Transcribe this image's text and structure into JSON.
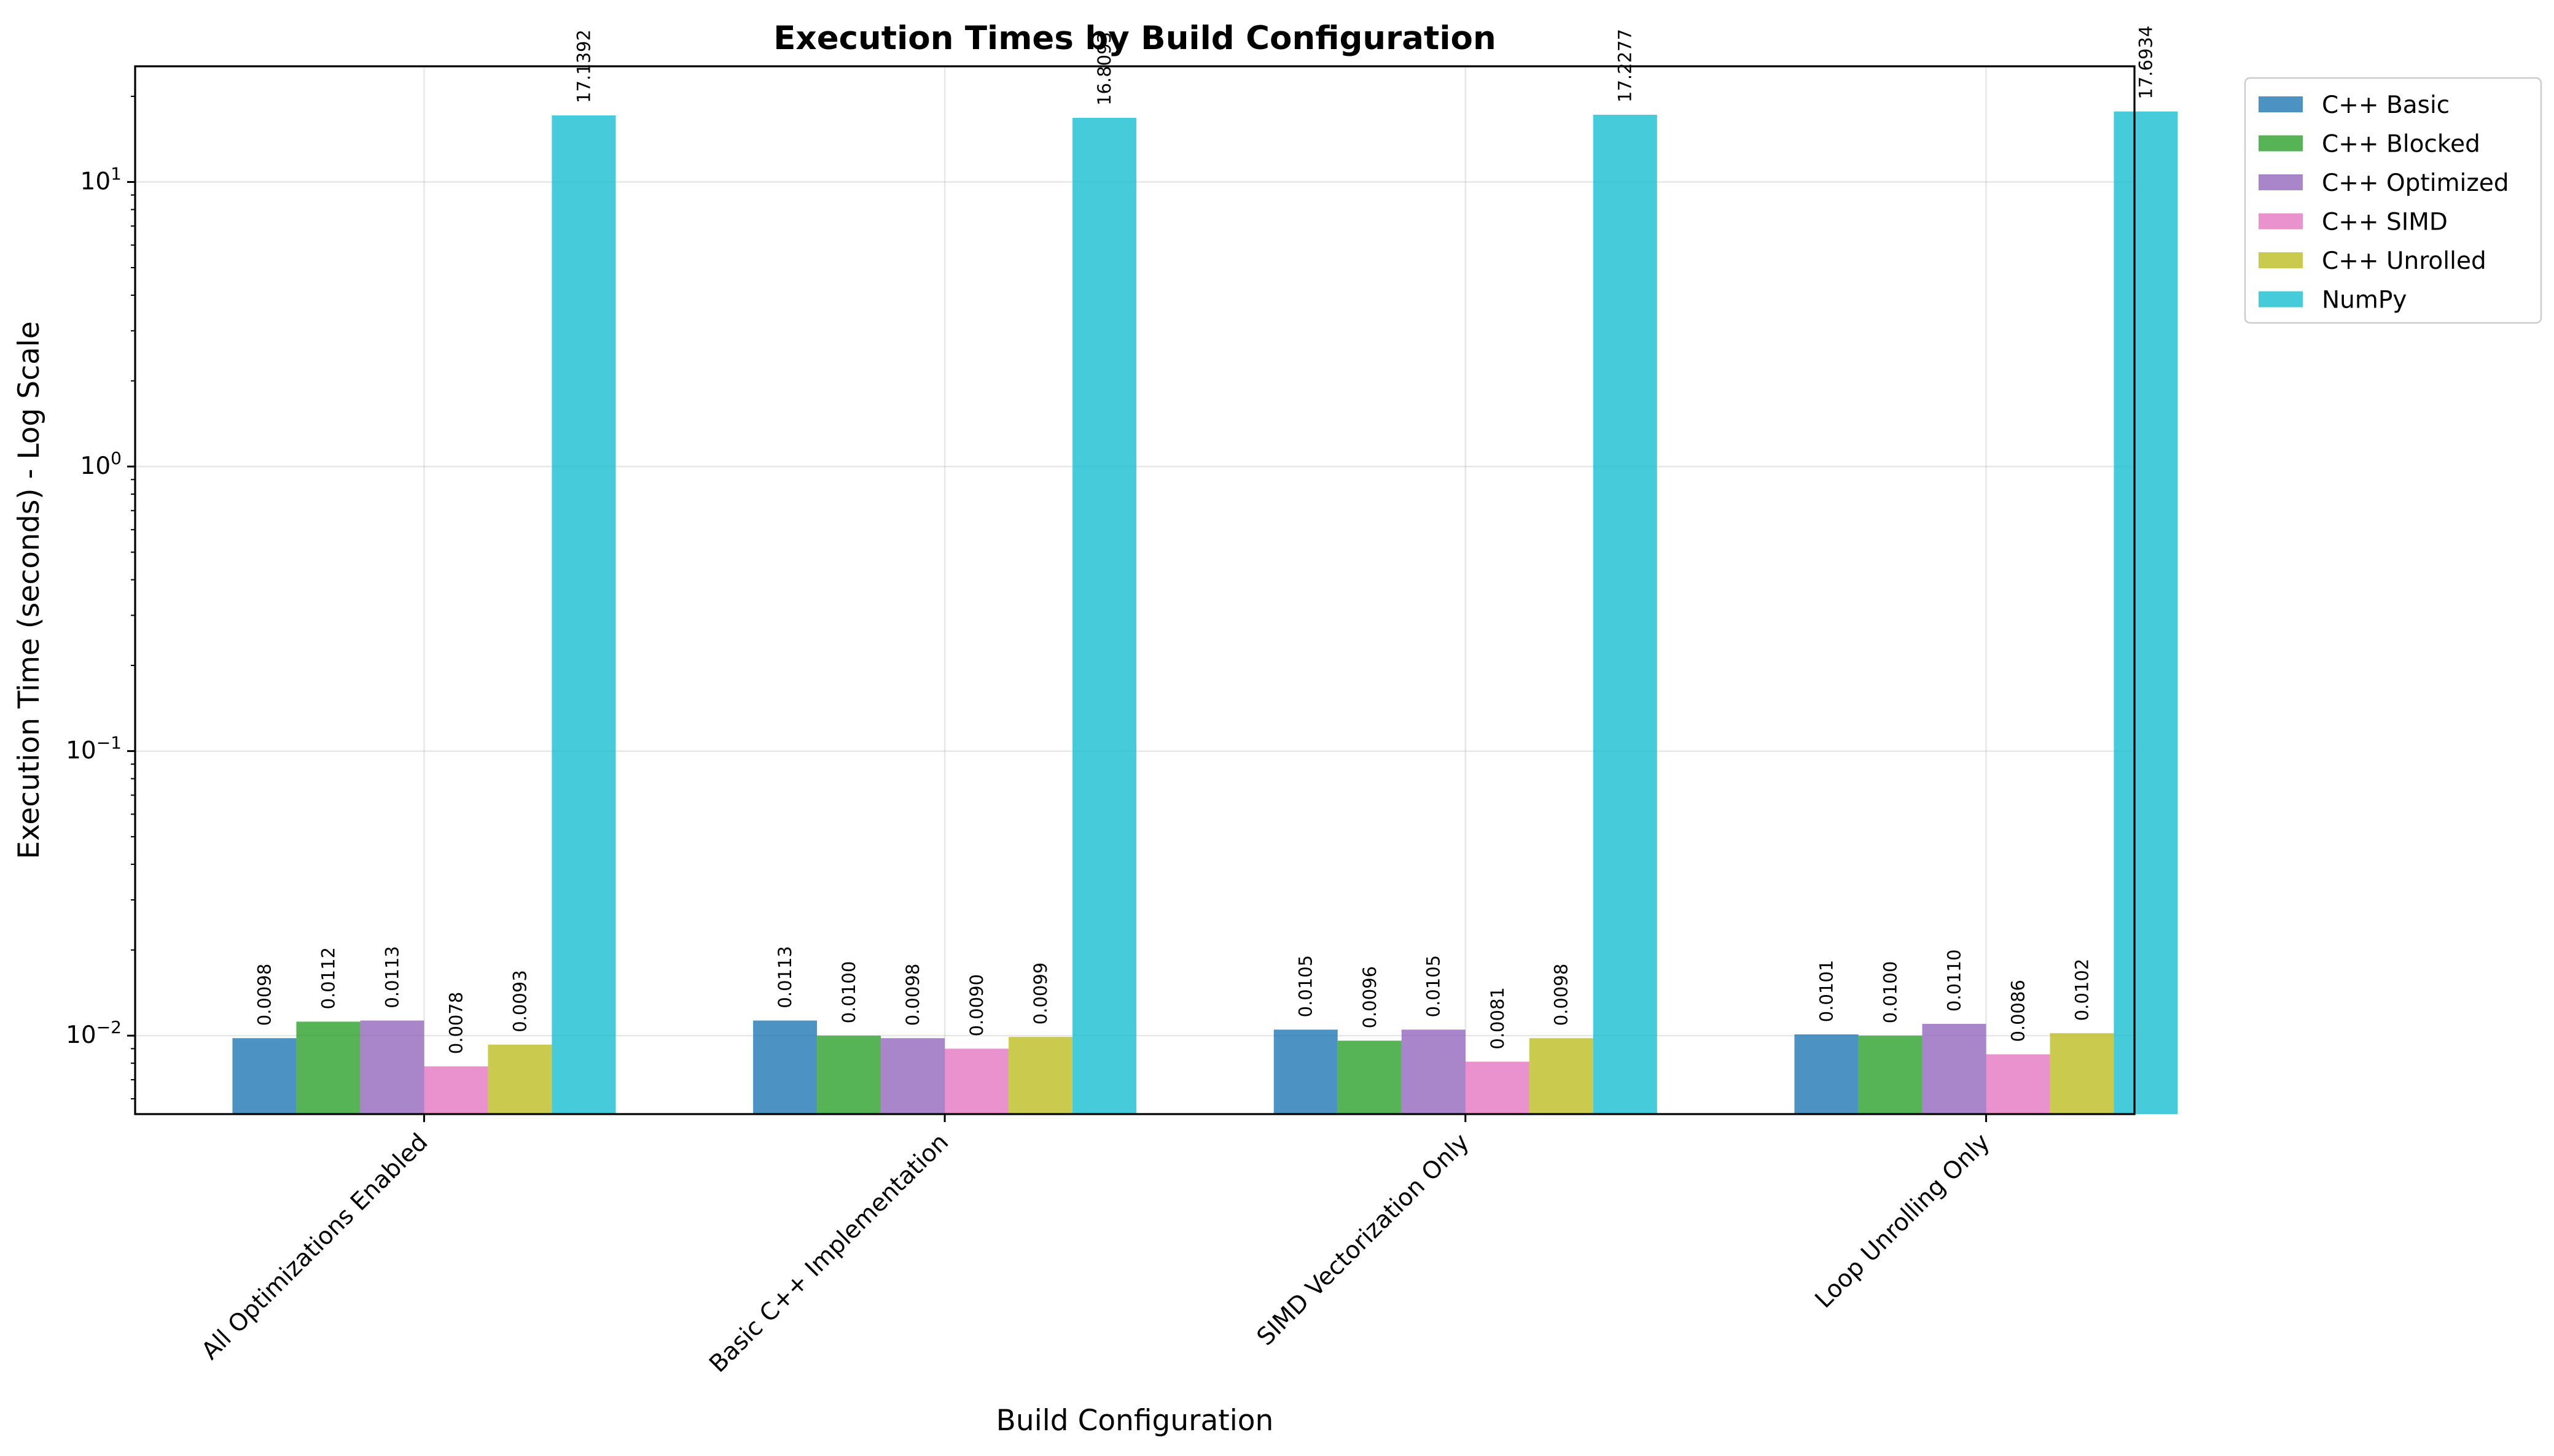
{
  "chart_data": {
    "type": "bar",
    "title": "Execution Times by Build Configuration",
    "xlabel": "Build Configuration",
    "ylabel": "Execution Time (seconds) - Log Scale",
    "yscale": "log",
    "ylim": [
      0.0053,
      25.5
    ],
    "yticks": [
      {
        "value": 0.01,
        "base": "10",
        "exp": "−2"
      },
      {
        "value": 0.1,
        "base": "10",
        "exp": "−1"
      },
      {
        "value": 1,
        "base": "10",
        "exp": "0"
      },
      {
        "value": 10,
        "base": "10",
        "exp": "1"
      }
    ],
    "grid": true,
    "legend_position": "outside-top-right",
    "categories": [
      "All Optimizations Enabled",
      "Basic C++ Implementation",
      "SIMD Vectorization Only",
      "Loop Unrolling Only"
    ],
    "series": [
      {
        "name": "C++ Basic",
        "color": "#1f77b4",
        "values": [
          0.0098,
          0.0113,
          0.0105,
          0.0101
        ],
        "labels": [
          "0.0098",
          "0.0113",
          "0.0105",
          "0.0101"
        ]
      },
      {
        "name": "C++ Blocked",
        "color": "#2ca02c",
        "values": [
          0.0112,
          0.01,
          0.0096,
          0.01
        ],
        "labels": [
          "0.0112",
          "0.0100",
          "0.0096",
          "0.0100"
        ]
      },
      {
        "name": "C++ Optimized",
        "color": "#9467bd",
        "values": [
          0.0113,
          0.0098,
          0.0105,
          0.011
        ],
        "labels": [
          "0.0113",
          "0.0098",
          "0.0105",
          "0.0110"
        ]
      },
      {
        "name": "C++ SIMD",
        "color": "#e377c2",
        "values": [
          0.0078,
          0.009,
          0.0081,
          0.0086
        ],
        "labels": [
          "0.0078",
          "0.0090",
          "0.0081",
          "0.0086"
        ]
      },
      {
        "name": "C++ Unrolled",
        "color": "#bcbd22",
        "values": [
          0.0093,
          0.0099,
          0.0098,
          0.0102
        ],
        "labels": [
          "0.0093",
          "0.0099",
          "0.0098",
          "0.0102"
        ]
      },
      {
        "name": "NumPy",
        "color": "#17becf",
        "values": [
          17.1392,
          16.8093,
          17.2277,
          17.6934
        ],
        "labels": [
          "17.1392",
          "16.8093",
          "17.2277",
          "17.6934"
        ]
      }
    ]
  }
}
